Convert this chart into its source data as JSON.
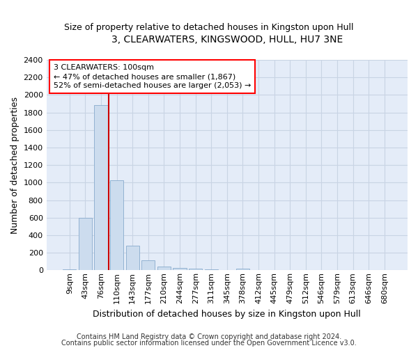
{
  "title": "3, CLEARWATERS, KINGSWOOD, HULL, HU7 3NE",
  "subtitle": "Size of property relative to detached houses in Kingston upon Hull",
  "xlabel": "Distribution of detached houses by size in Kingston upon Hull",
  "ylabel": "Number of detached properties",
  "footnote1": "Contains HM Land Registry data © Crown copyright and database right 2024.",
  "footnote2": "Contains public sector information licensed under the Open Government Licence v3.0.",
  "categories": [
    "9sqm",
    "43sqm",
    "76sqm",
    "110sqm",
    "143sqm",
    "177sqm",
    "210sqm",
    "244sqm",
    "277sqm",
    "311sqm",
    "345sqm",
    "378sqm",
    "412sqm",
    "445sqm",
    "479sqm",
    "512sqm",
    "546sqm",
    "579sqm",
    "613sqm",
    "646sqm",
    "680sqm"
  ],
  "values": [
    10,
    600,
    1880,
    1030,
    280,
    110,
    45,
    25,
    15,
    10,
    5,
    15,
    5,
    3,
    2,
    1,
    0,
    1,
    0,
    0,
    0
  ],
  "bar_color": "#ccdcee",
  "bar_edge_color": "#88aacc",
  "grid_color": "#c8d4e4",
  "background_color": "#e4ecf8",
  "vline_color": "#cc0000",
  "annotation_line1": "3 CLEARWATERS: 100sqm",
  "annotation_line2": "← 47% of detached houses are smaller (1,867)",
  "annotation_line3": "52% of semi-detached houses are larger (2,053) →",
  "annotation_box_color": "red",
  "ylim": [
    0,
    2400
  ],
  "yticks": [
    0,
    200,
    400,
    600,
    800,
    1000,
    1200,
    1400,
    1600,
    1800,
    2000,
    2200,
    2400
  ],
  "title_fontsize": 10,
  "subtitle_fontsize": 9,
  "tick_fontsize": 8,
  "ylabel_fontsize": 9,
  "xlabel_fontsize": 9,
  "footnote_fontsize": 7
}
